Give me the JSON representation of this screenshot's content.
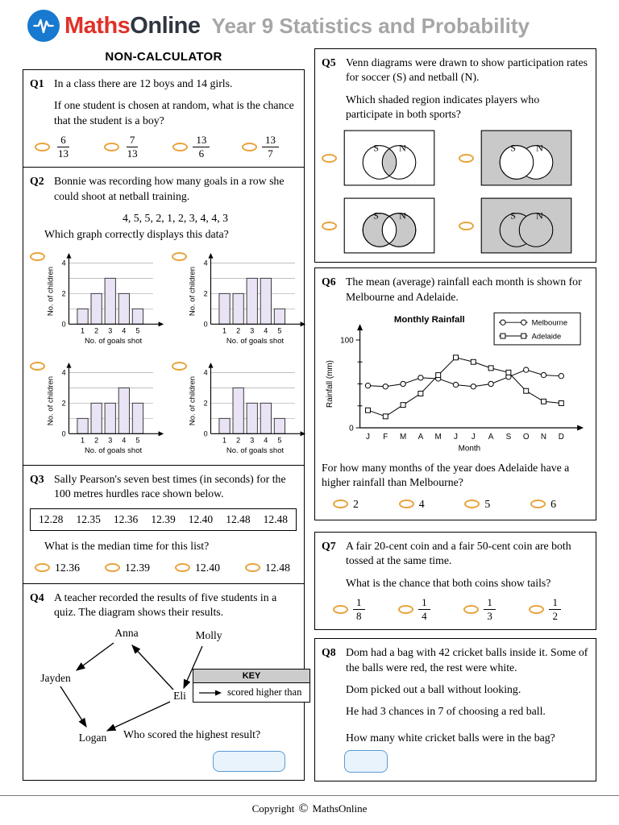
{
  "header": {
    "brand_maths": "Maths",
    "brand_online": "Online",
    "page_title": "Year 9 Statistics and Probability"
  },
  "section": {
    "left_title": "NON-CALCULATOR"
  },
  "q1": {
    "label": "Q1",
    "text1": "In a class there are 12 boys and 14 girls.",
    "text2": "If one student is chosen at random, what is the chance that the student is a boy?",
    "options": [
      {
        "num": "6",
        "den": "13"
      },
      {
        "num": "7",
        "den": "13"
      },
      {
        "num": "13",
        "den": "6"
      },
      {
        "num": "13",
        "den": "7"
      }
    ]
  },
  "q2": {
    "label": "Q2",
    "text1": "Bonnie was recording how many goals in a row she could shoot at netball training.",
    "data_values": "4, 5, 5, 2, 1, 2, 3, 4, 4, 3",
    "text2": "Which graph correctly displays this data?"
  },
  "q3": {
    "label": "Q3",
    "text1": "Sally Pearson's seven best times (in seconds) for the 100 metres hurdles race shown below.",
    "times": [
      "12.28",
      "12.35",
      "12.36",
      "12.39",
      "12.40",
      "12.48",
      "12.48"
    ],
    "text2": "What is the median time for this list?",
    "options": [
      "12.36",
      "12.39",
      "12.40",
      "12.48"
    ]
  },
  "q4": {
    "label": "Q4",
    "text1": "A teacher recorded the results of five students in a quiz. The diagram shows their results.",
    "names": {
      "anna": "Anna",
      "molly": "Molly",
      "jayden": "Jayden",
      "eli": "Eli",
      "logan": "Logan"
    },
    "key_title": "KEY",
    "key_text": "scored higher than",
    "question": "Who scored the highest result?"
  },
  "q5": {
    "label": "Q5",
    "text1": "Venn diagrams were drawn to show participation rates for soccer (S) and netball (N).",
    "text2": "Which shaded region indicates players who participate in both sports?",
    "set_s": "S",
    "set_n": "N"
  },
  "q6": {
    "label": "Q6",
    "text1": "The mean (average) rainfall each month is shown for Melbourne and Adelaide.",
    "question1": "For how many months of the year does Adelaide have a higher rainfall than Melbourne?",
    "options": [
      "2",
      "4",
      "5",
      "6"
    ]
  },
  "q7": {
    "label": "Q7",
    "text1": "A fair 20-cent coin and a fair 50-cent coin are both tossed at the same time.",
    "text2": "What is the chance that both coins show tails?",
    "options": [
      {
        "num": "1",
        "den": "8"
      },
      {
        "num": "1",
        "den": "4"
      },
      {
        "num": "1",
        "den": "3"
      },
      {
        "num": "1",
        "den": "2"
      }
    ]
  },
  "q8": {
    "label": "Q8",
    "text1": "Dom had a bag with 42 cricket balls inside it. Some of the balls were red, the rest were white.",
    "text2": "Dom picked out a ball without looking.",
    "text3": "He had 3 chances in 7 of choosing a red ball.",
    "question": "How many white cricket balls were in the bag?"
  },
  "footer": {
    "text": "Copyright",
    "symbol": "©",
    "brand": "MathsOnline"
  },
  "colors": {
    "accent_orange": "#E8A33D",
    "answer_blue": "#5B9BD5",
    "bar_fill": "#E9E3F5",
    "venn_gray": "#C9C9C9",
    "logo_blue": "#1779CF",
    "brand_red": "#E03128"
  },
  "chart_data": [
    {
      "id": "q2a",
      "type": "bar",
      "categories": [
        1,
        2,
        3,
        4,
        5
      ],
      "values": [
        1,
        2,
        3,
        2,
        1
      ],
      "xlabel": "No. of goals shot",
      "ylabel": "No. of children",
      "ylim": [
        0,
        4
      ],
      "yticks": [
        0,
        2,
        4
      ],
      "grid": true
    },
    {
      "id": "q2b",
      "type": "bar",
      "categories": [
        1,
        2,
        3,
        4,
        5
      ],
      "values": [
        2,
        2,
        3,
        3,
        1
      ],
      "xlabel": "No. of goals shot",
      "ylabel": "No. of children",
      "ylim": [
        0,
        4
      ],
      "yticks": [
        0,
        2,
        4
      ],
      "grid": true
    },
    {
      "id": "q2c",
      "type": "bar",
      "categories": [
        1,
        2,
        3,
        4,
        5
      ],
      "values": [
        1,
        2,
        2,
        3,
        2
      ],
      "xlabel": "No. of goals shot",
      "ylabel": "No. of children",
      "ylim": [
        0,
        4
      ],
      "yticks": [
        0,
        2,
        4
      ],
      "grid": true
    },
    {
      "id": "q2d",
      "type": "bar",
      "categories": [
        1,
        2,
        3,
        4,
        5
      ],
      "values": [
        1,
        3,
        2,
        2,
        1
      ],
      "xlabel": "No. of goals shot",
      "ylabel": "No. of children",
      "ylim": [
        0,
        4
      ],
      "yticks": [
        0,
        2,
        4
      ],
      "grid": true
    },
    {
      "id": "q6",
      "type": "line",
      "title": "Monthly Rainfall",
      "x": [
        "J",
        "F",
        "M",
        "A",
        "M",
        "J",
        "J",
        "A",
        "S",
        "O",
        "N",
        "D"
      ],
      "xlabel": "Month",
      "ylabel": "Rainfall (mm)",
      "ylim": [
        0,
        100
      ],
      "yticks": [
        0,
        100
      ],
      "minor_yticks": [
        25,
        50,
        75
      ],
      "legend_position": "top-right",
      "series": [
        {
          "name": "Melbourne",
          "marker": "circle",
          "values": [
            48,
            47,
            50,
            57,
            56,
            49,
            47,
            50,
            58,
            66,
            60,
            59
          ]
        },
        {
          "name": "Adelaide",
          "marker": "square",
          "values": [
            20,
            13,
            26,
            39,
            60,
            80,
            75,
            68,
            63,
            42,
            30,
            28
          ]
        }
      ]
    }
  ]
}
